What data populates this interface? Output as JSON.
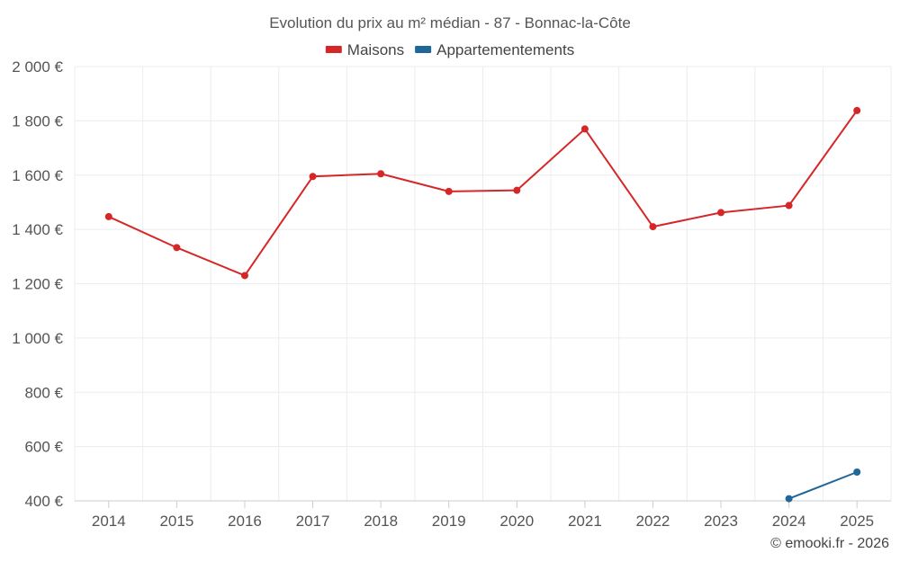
{
  "chart_data": {
    "type": "line",
    "title": "Evolution du prix au m² médian - 87 - Bonnac-la-Côte",
    "categories": [
      "2014",
      "2015",
      "2016",
      "2017",
      "2018",
      "2019",
      "2020",
      "2021",
      "2022",
      "2023",
      "2024",
      "2025"
    ],
    "series": [
      {
        "name": "Maisons",
        "color": "#d62728",
        "values": [
          1447,
          1333,
          1230,
          1595,
          1605,
          1540,
          1544,
          1770,
          1410,
          1462,
          1488,
          1838
        ]
      },
      {
        "name": "Appartementements",
        "color": "#1f6699",
        "values": [
          null,
          null,
          null,
          null,
          null,
          null,
          null,
          null,
          null,
          null,
          408,
          506
        ]
      }
    ],
    "ylim": [
      400,
      2000
    ],
    "yticks": [
      400,
      600,
      800,
      1000,
      1200,
      1400,
      1600,
      1800,
      2000
    ],
    "ytick_labels": [
      "400 €",
      "600 €",
      "800 €",
      "1 000 €",
      "1 200 €",
      "1 400 €",
      "1 600 €",
      "1 800 €",
      "2 000 €"
    ],
    "xlabel": "",
    "ylabel": "",
    "grid": true,
    "legend_position": "top-center"
  },
  "credit": "© emooki.fr - 2026"
}
